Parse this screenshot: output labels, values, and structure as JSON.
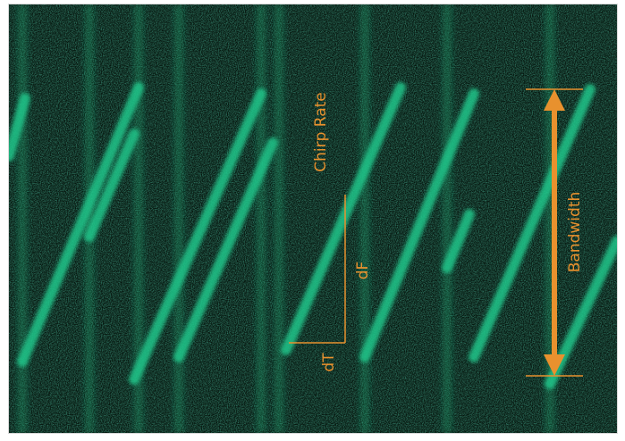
{
  "labels": {
    "chirp_rate": "Chirp Rate",
    "dF": "dF",
    "dT": "dT",
    "bandwidth": "Bandwidth"
  }
}
